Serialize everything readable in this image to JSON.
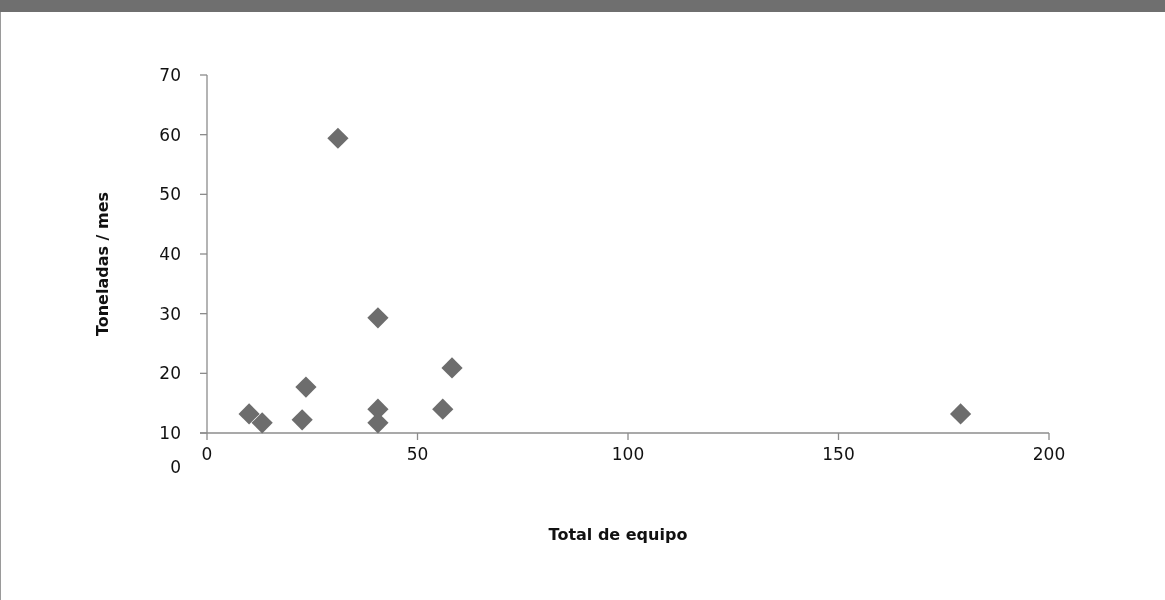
{
  "chart_data": {
    "type": "scatter",
    "xlabel": "Total de equipo",
    "ylabel": "Toneladas / mes",
    "x": [
      10.0,
      13.1,
      22.6,
      23.5,
      31.1,
      40.6,
      40.6,
      40.6,
      56.0,
      58.2,
      179
    ],
    "series": [
      {
        "color": "#6d6d6d",
        "values": [
          13.2,
          11.7,
          12.2,
          17.7,
          59.4,
          29.3,
          14.0,
          11.7,
          14.0,
          20.9,
          13.2
        ]
      }
    ],
    "xlim": [
      0,
      200
    ],
    "xticks": [
      0,
      50,
      100,
      150,
      200
    ],
    "ylim": [
      10,
      70
    ],
    "yticks": [
      10,
      20,
      30,
      40,
      50,
      60,
      70
    ],
    "marker": "diamond",
    "grid": false,
    "annotations": [
      "0"
    ]
  }
}
